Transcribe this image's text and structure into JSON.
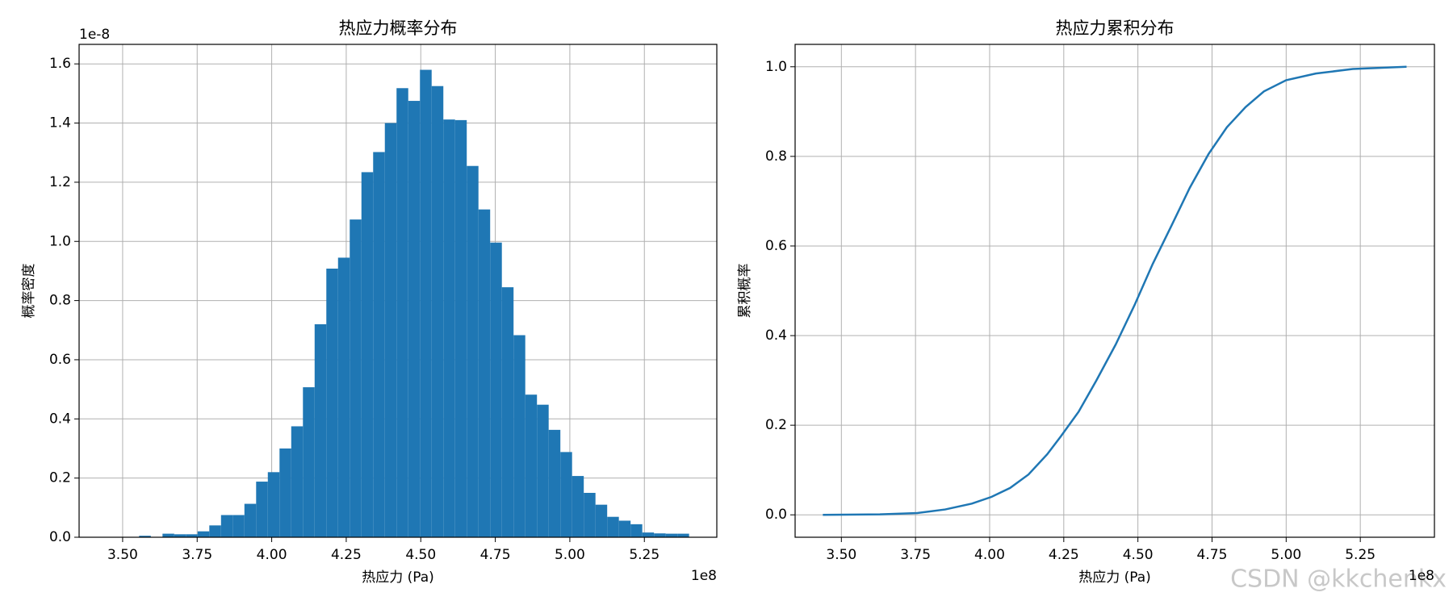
{
  "chart_data": [
    {
      "type": "histogram",
      "title": "热应力概率分布",
      "xlabel": "热应力 (Pa)",
      "ylabel": "概率密度",
      "x_offset": "1e8",
      "y_offset": "1e-8",
      "color": "#1f77b4",
      "grid": true,
      "bins": [
        343750000,
        347675000,
        351600000,
        355525000,
        359450000,
        363375000,
        367300000,
        371225000,
        375150000,
        379075000,
        383000000,
        386925000,
        390850000,
        394775000,
        398700000,
        402625000,
        406550000,
        410475000,
        414400000,
        418325000,
        422250000,
        426175000,
        430100000,
        434025000,
        437950000,
        441875000,
        445800000,
        449725000,
        453650000,
        457575000,
        461500000,
        465425000,
        469350000,
        473275000,
        477200000,
        481125000,
        485050000,
        488975000,
        492900000,
        496825000,
        500750000,
        504675000,
        508600000,
        512525000,
        516450000,
        520375000,
        524300000,
        528225000,
        532150000,
        536075000,
        540000000
      ],
      "values": [
        0,
        0,
        0,
        5e-11,
        0,
        1.2e-10,
        1e-10,
        1e-10,
        2e-10,
        4e-10,
        7.5e-10,
        7.5e-10,
        1.13e-09,
        1.88e-09,
        2.2e-09,
        3e-09,
        3.75e-09,
        5.07e-09,
        7.2e-09,
        9.08e-09,
        9.45e-09,
        1.074e-08,
        1.234e-08,
        1.302e-08,
        1.4e-08,
        1.518e-08,
        1.475e-08,
        1.58e-08,
        1.525e-08,
        1.412e-08,
        1.41e-08,
        1.255e-08,
        1.108e-08,
        9.96e-09,
        8.45e-09,
        6.83e-09,
        4.82e-09,
        4.48e-09,
        3.63e-09,
        2.88e-09,
        2.07e-09,
        1.5e-09,
        1.1e-09,
        6.9e-10,
        5.6e-10,
        4.4e-10,
        1.6e-10,
        1.3e-10,
        1.2e-10,
        1.2e-10
      ],
      "xlim": [
        335400000,
        549300000
      ],
      "ylim": [
        0,
        1.666e-08
      ],
      "xticks": [
        {
          "value": 350000000,
          "label": "3.50"
        },
        {
          "value": 375000000,
          "label": "3.75"
        },
        {
          "value": 400000000,
          "label": "4.00"
        },
        {
          "value": 425000000,
          "label": "4.25"
        },
        {
          "value": 450000000,
          "label": "4.50"
        },
        {
          "value": 475000000,
          "label": "4.75"
        },
        {
          "value": 500000000,
          "label": "5.00"
        },
        {
          "value": 525000000,
          "label": "5.25"
        }
      ],
      "yticks": [
        {
          "value": 0,
          "label": "0.0"
        },
        {
          "value": 2e-09,
          "label": "0.2"
        },
        {
          "value": 4e-09,
          "label": "0.4"
        },
        {
          "value": 6e-09,
          "label": "0.6"
        },
        {
          "value": 8e-09,
          "label": "0.8"
        },
        {
          "value": 1e-08,
          "label": "1.0"
        },
        {
          "value": 1.2e-08,
          "label": "1.2"
        },
        {
          "value": 1.4e-08,
          "label": "1.4"
        },
        {
          "value": 1.6e-08,
          "label": "1.6"
        }
      ]
    },
    {
      "type": "line",
      "title": "热应力累积分布",
      "xlabel": "热应力 (Pa)",
      "ylabel": "累积概率",
      "x_offset": "1e8",
      "color": "#1f77b4",
      "grid": true,
      "x": [
        343750000,
        363000000,
        375600000,
        385000000,
        394000000,
        400600000,
        406900000,
        413100000,
        419400000,
        424000000,
        430000000,
        436000000,
        442500000,
        449000000,
        455000000,
        461300000,
        467500000,
        473800000,
        480000000,
        486300000,
        492500000,
        500000000,
        510000000,
        522500000,
        540600000
      ],
      "values": [
        0,
        0.001,
        0.004,
        0.012,
        0.025,
        0.04,
        0.06,
        0.09,
        0.135,
        0.175,
        0.23,
        0.3,
        0.38,
        0.47,
        0.56,
        0.645,
        0.73,
        0.805,
        0.865,
        0.91,
        0.945,
        0.97,
        0.985,
        0.995,
        1.0
      ],
      "xlim": [
        334400000,
        550000000
      ],
      "ylim": [
        -0.05,
        1.05
      ],
      "xticks": [
        {
          "value": 350000000,
          "label": "3.50"
        },
        {
          "value": 375000000,
          "label": "3.75"
        },
        {
          "value": 400000000,
          "label": "4.00"
        },
        {
          "value": 425000000,
          "label": "4.25"
        },
        {
          "value": 450000000,
          "label": "4.50"
        },
        {
          "value": 475000000,
          "label": "4.75"
        },
        {
          "value": 500000000,
          "label": "5.00"
        },
        {
          "value": 525000000,
          "label": "5.25"
        }
      ],
      "yticks": [
        {
          "value": 0,
          "label": "0.0"
        },
        0.2,
        0.4,
        0.6,
        0.8,
        {
          "value": 1.0,
          "label": "1.0"
        }
      ]
    }
  ],
  "watermark": "CSDN @kkchenkx"
}
